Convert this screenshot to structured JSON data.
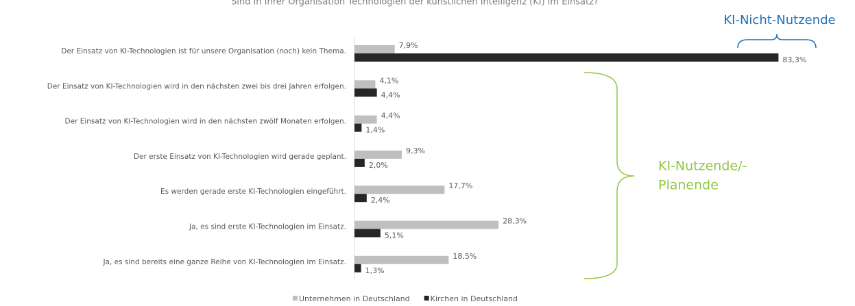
{
  "chart_data": {
    "type": "hbar",
    "title": "Sind in Ihrer Organisation Technologien der künstlichen Intelligenz (KI) im Einsatz?",
    "categories": [
      "Der Einsatz von KI-Technologien ist für unsere Organisation (noch) kein Thema.",
      "Der Einsatz von KI-Technologien wird in den nächsten zwei bis drei Jahren erfolgen.",
      "Der Einsatz von KI-Technologien wird in den nächsten zwölf Monaten erfolgen.",
      "Der erste Einsatz von KI-Technologien wird gerade geplant.",
      "Es werden gerade erste KI-Technologien eingeführt.",
      "Ja, es sind erste KI-Technologien im Einsatz.",
      "Ja, es sind bereits eine ganze Reihe von KI-Technologien im Einsatz."
    ],
    "series": [
      {
        "name": "Unternehmen in Deutschland",
        "color": "#bfbfbf",
        "values": [
          7.9,
          4.1,
          4.4,
          9.3,
          17.7,
          28.3,
          18.5
        ],
        "value_labels": [
          "7,9%",
          "4,1%",
          "4,4%",
          "9,3%",
          "17,7%",
          "28,3%",
          "18,5%"
        ]
      },
      {
        "name": "Kirchen in Deutschland",
        "color": "#262626",
        "values": [
          83.3,
          4.4,
          1.4,
          2.0,
          2.4,
          5.1,
          1.3
        ],
        "value_labels": [
          "83,3%",
          "4,4%",
          "1,4%",
          "2,0%",
          "2,4%",
          "5,1%",
          "1,3%"
        ]
      }
    ],
    "xlim": [
      0,
      85
    ],
    "annotations": [
      {
        "text": "KI-Nicht-Nutzende",
        "color": "#1f6fb5"
      },
      {
        "lines": [
          "KI-Nutzende/-",
          "Planende"
        ],
        "color": "#92c83e"
      }
    ]
  }
}
